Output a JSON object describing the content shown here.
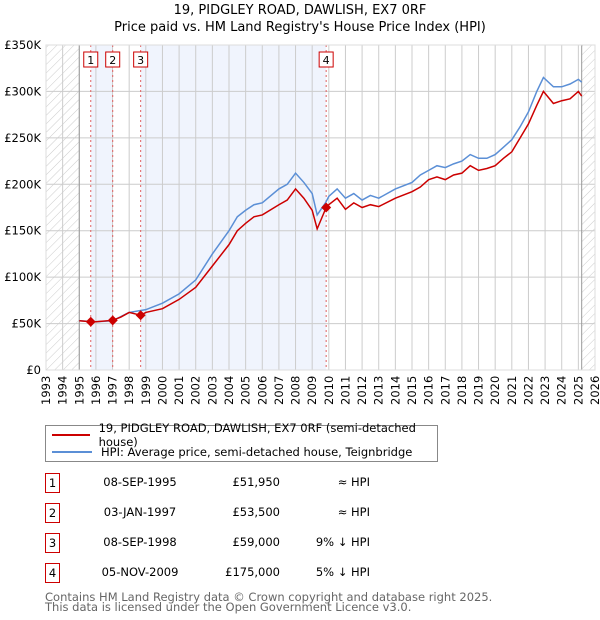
{
  "chart_data": {
    "type": "line",
    "title": "19, PIDGLEY ROAD, DAWLISH, EX7 0RF",
    "subtitle": "Price paid vs. HM Land Registry's House Price Index (HPI)",
    "xlim": [
      1993,
      2026
    ],
    "ylim": [
      0,
      350000
    ],
    "x_ticks": [
      "1993",
      "1994",
      "1995",
      "1996",
      "1997",
      "1998",
      "1999",
      "2000",
      "2001",
      "2002",
      "2003",
      "2004",
      "2005",
      "2006",
      "2007",
      "2008",
      "2009",
      "2010",
      "2011",
      "2012",
      "2013",
      "2014",
      "2015",
      "2016",
      "2017",
      "2018",
      "2019",
      "2020",
      "2021",
      "2022",
      "2023",
      "2024",
      "2025",
      "2026"
    ],
    "y_ticks": [
      {
        "v": 0,
        "label": "£0"
      },
      {
        "v": 50000,
        "label": "£50K"
      },
      {
        "v": 100000,
        "label": "£100K"
      },
      {
        "v": 150000,
        "label": "£150K"
      },
      {
        "v": 200000,
        "label": "£200K"
      },
      {
        "v": 250000,
        "label": "£250K"
      },
      {
        "v": 300000,
        "label": "£300K"
      },
      {
        "v": 350000,
        "label": "£350K"
      }
    ],
    "grid": true,
    "data_range": [
      1995,
      2025.2
    ],
    "series": [
      {
        "name": "19, PIDGLEY ROAD, DAWLISH, EX7 0RF (semi-detached house)",
        "color": "#cc0000",
        "x": [
          1995,
          1995.69,
          1996,
          1997.01,
          1997.5,
          1998,
          1998.69,
          1999,
          2000,
          2001,
          2002,
          2003,
          2004,
          2004.5,
          2005,
          2005.5,
          2006,
          2007,
          2007.5,
          2008,
          2008.5,
          2009,
          2009.3,
          2009.84,
          2010,
          2010.5,
          2011,
          2011.5,
          2012,
          2012.5,
          2013,
          2014,
          2015,
          2015.5,
          2016,
          2016.5,
          2017,
          2017.5,
          2018,
          2018.5,
          2019,
          2019.5,
          2020,
          2020.5,
          2021,
          2021.5,
          2022,
          2022.5,
          2022.9,
          2023.5,
          2024,
          2024.5,
          2025,
          2025.2
        ],
        "y": [
          53000,
          51950,
          52000,
          53500,
          57000,
          62000,
          59000,
          62000,
          66000,
          76000,
          89000,
          112000,
          135000,
          150000,
          158000,
          165000,
          167000,
          178000,
          183000,
          195000,
          185000,
          172000,
          152000,
          175000,
          178000,
          185000,
          173000,
          180000,
          175000,
          178000,
          176000,
          185000,
          192000,
          197000,
          205000,
          208000,
          205000,
          210000,
          212000,
          220000,
          215000,
          217000,
          220000,
          228000,
          235000,
          250000,
          265000,
          285000,
          300000,
          287000,
          290000,
          292000,
          300000,
          295000
        ]
      },
      {
        "name": "HPI: Average price, semi-detached house, Teignbridge",
        "color": "#5b8fd6",
        "x": [
          1995,
          1996,
          1997,
          1998,
          1999,
          2000,
          2001,
          2002,
          2003,
          2004,
          2004.5,
          2005,
          2005.5,
          2006,
          2007,
          2007.5,
          2008,
          2008.5,
          2009,
          2009.3,
          2009.8,
          2010,
          2010.5,
          2011,
          2011.5,
          2012,
          2012.5,
          2013,
          2014,
          2015,
          2015.5,
          2016,
          2016.5,
          2017,
          2017.5,
          2018,
          2018.5,
          2019,
          2019.5,
          2020,
          2020.5,
          2021,
          2021.5,
          2022,
          2022.5,
          2022.9,
          2023.5,
          2024,
          2024.5,
          2025,
          2025.2
        ],
        "y": [
          53000,
          52000,
          53000,
          62000,
          65000,
          72000,
          82000,
          97000,
          125000,
          150000,
          165000,
          172000,
          178000,
          180000,
          195000,
          200000,
          212000,
          202000,
          190000,
          167000,
          180000,
          187000,
          195000,
          185000,
          190000,
          183000,
          188000,
          185000,
          195000,
          202000,
          210000,
          215000,
          220000,
          218000,
          222000,
          225000,
          232000,
          228000,
          228000,
          232000,
          240000,
          248000,
          262000,
          278000,
          300000,
          315000,
          305000,
          305000,
          308000,
          313000,
          310000
        ]
      }
    ],
    "sales": [
      {
        "n": "1",
        "x": 1995.69,
        "date": "08-SEP-1995",
        "price": 51950,
        "price_label": "£51,950",
        "hpi": "≈ HPI"
      },
      {
        "n": "2",
        "x": 1997.01,
        "date": "03-JAN-1997",
        "price": 53500,
        "price_label": "£53,500",
        "hpi": "≈ HPI"
      },
      {
        "n": "3",
        "x": 1998.69,
        "date": "08-SEP-1998",
        "price": 59000,
        "price_label": "£59,000",
        "hpi": "9% ↓ HPI"
      },
      {
        "n": "4",
        "x": 2009.84,
        "date": "05-NOV-2009",
        "price": 175000,
        "price_label": "£175,000",
        "hpi": "5% ↓ HPI"
      }
    ]
  },
  "footer": {
    "line1": "Contains HM Land Registry data © Crown copyright and database right 2025.",
    "line2": "This data is licensed under the Open Government Licence v3.0."
  }
}
